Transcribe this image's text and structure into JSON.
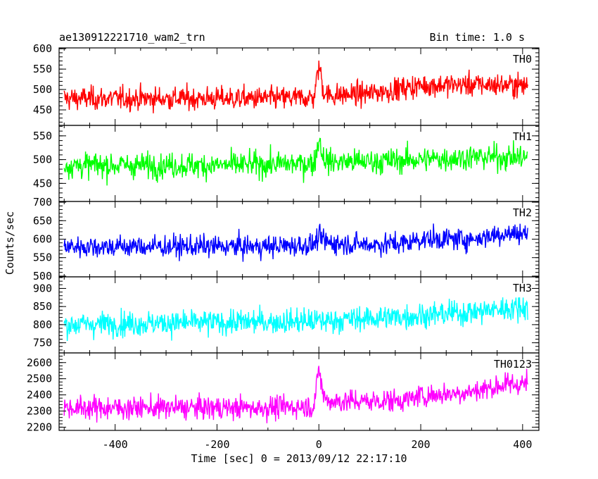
{
  "chart_data": {
    "type": "line",
    "title_left": "ae130912221710_wam2_trn",
    "title_right": "Bin time: 1.0 s",
    "xlabel": "Time [sec] 0 = 2013/09/12 22:17:10",
    "ylabel": "Counts/sec",
    "xlim": [
      -510,
      432
    ],
    "x_ticks": [
      -400,
      -200,
      0,
      200,
      400
    ],
    "panels": [
      {
        "name": "TH0",
        "color": "#ff0000",
        "ylim": [
          412,
          602
        ],
        "y_ticks": [
          450,
          500,
          550,
          600
        ],
        "segments": [
          {
            "x": [
              -500,
              -400,
              -300,
              -200,
              -100,
              -10,
              -2,
              0,
              3,
              8,
              20,
              100,
              200,
              300,
              410
            ],
            "mean": [
              478,
              478,
              478,
              478,
              478,
              480,
              540,
              560,
              545,
              500,
              485,
              490,
              510,
              512,
              510
            ],
            "noise": 48
          }
        ]
      },
      {
        "name": "TH1",
        "color": "#00ff00",
        "ylim": [
          412,
          572
        ],
        "y_ticks": [
          450,
          500,
          550
        ],
        "segments": [
          {
            "x": [
              -500,
              -400,
              -300,
              -200,
              -100,
              -10,
              -2,
              0,
              3,
              8,
              20,
              100,
              200,
              300,
              410
            ],
            "mean": [
              488,
              488,
              488,
              488,
              490,
              492,
              530,
              545,
              535,
              505,
              495,
              496,
              500,
              505,
              505
            ],
            "noise": 45
          }
        ]
      },
      {
        "name": "TH2",
        "color": "#0000ff",
        "ylim": [
          498,
          702
        ],
        "y_ticks": [
          500,
          550,
          600,
          650,
          700
        ],
        "segments": [
          {
            "x": [
              -500,
              -400,
              -300,
              -200,
              -100,
              -10,
              0,
              20,
              100,
              180,
              190,
              300,
              360,
              410
            ],
            "mean": [
              580,
              580,
              580,
              580,
              580,
              585,
              605,
              590,
              585,
              590,
              600,
              600,
              615,
              615
            ],
            "noise": 50
          }
        ]
      },
      {
        "name": "TH3",
        "color": "#00ffff",
        "ylim": [
          722,
          932
        ],
        "y_ticks": [
          750,
          800,
          850,
          900
        ],
        "segments": [
          {
            "x": [
              -500,
              -400,
              -200,
              0,
              200,
              300,
              410
            ],
            "mean": [
              800,
              803,
              806,
              810,
              825,
              835,
              850
            ],
            "noise": 58
          }
        ]
      },
      {
        "name": "TH0123",
        "color": "#ff00ff",
        "ylim": [
          2180,
          2660
        ],
        "y_ticks": [
          2200,
          2300,
          2400,
          2500,
          2600
        ],
        "segments": [
          {
            "x": [
              -500,
              -400,
              -300,
              -200,
              -100,
              -10,
              -2,
              0,
              3,
              8,
              20,
              100,
              180,
              190,
              300,
              360,
              410
            ],
            "mean": [
              2320,
              2320,
              2320,
              2320,
              2320,
              2330,
              2500,
              2560,
              2520,
              2400,
              2360,
              2360,
              2370,
              2390,
              2420,
              2460,
              2470
            ],
            "noise": 120
          }
        ]
      }
    ]
  }
}
